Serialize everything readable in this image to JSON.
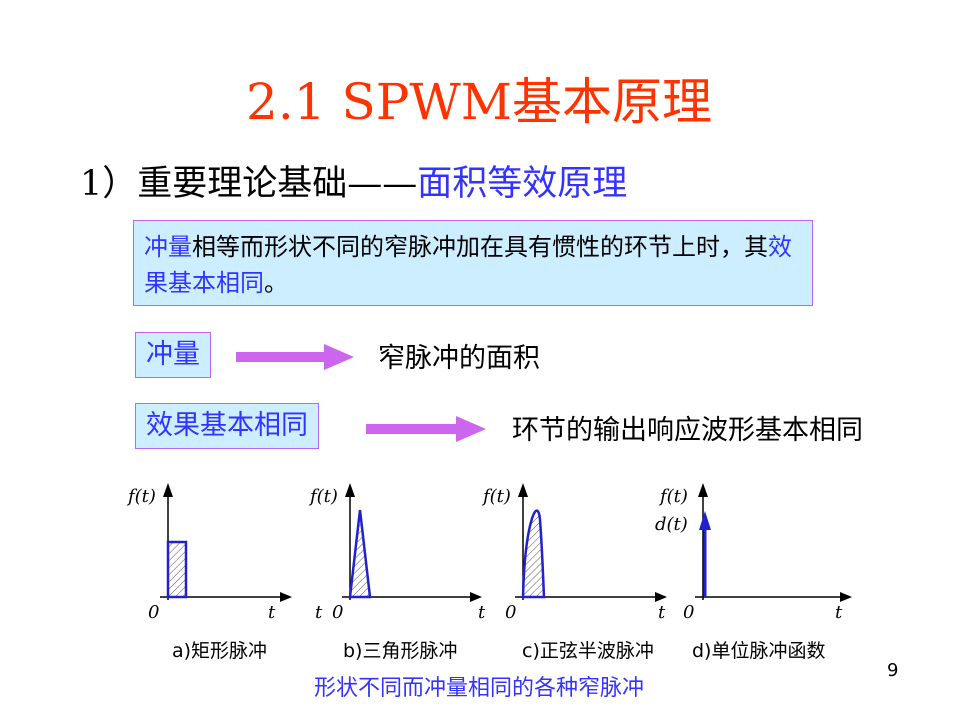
{
  "title": "2.1 SPWM基本原理",
  "subtitle": {
    "prefix": "1）重要理论基础——",
    "highlight": "面积等效原理"
  },
  "definition": {
    "part1": "冲量",
    "part2": "相等而形状不同的窄脉冲加在具有惯性的环节上时，其",
    "part3": "效果基本相同",
    "part4": "。"
  },
  "rows": [
    {
      "label": "冲量",
      "result": "窄脉冲的面积"
    },
    {
      "label": "效果基本相同",
      "result": "环节的输出响应波形基本相同"
    }
  ],
  "plots": {
    "ylabel": "f(t)",
    "ylabel_d": "d(t)",
    "xlabel": "t",
    "origin": "0",
    "captions": [
      "a)矩形脉冲",
      "b)三角形脉冲",
      "c)正弦半波脉冲",
      "d)单位脉冲函数"
    ]
  },
  "bottom_caption": "形状不同而冲量相同的各种窄脉冲",
  "page_number": "9",
  "colors": {
    "title": "#ff3300",
    "accent": "#3333ff",
    "box_bg": "#cceeff",
    "arrow": "#cc66ee"
  }
}
